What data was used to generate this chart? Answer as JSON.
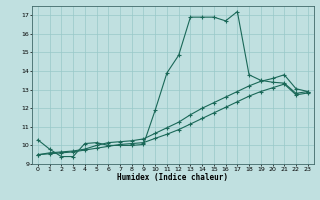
{
  "title": "",
  "xlabel": "Humidex (Indice chaleur)",
  "ylabel": "",
  "bg_color": "#c0e0e0",
  "line_color": "#1a6858",
  "grid_color": "#98c8c8",
  "xlim": [
    -0.5,
    23.5
  ],
  "ylim": [
    9.0,
    17.5
  ],
  "xticks": [
    0,
    1,
    2,
    3,
    4,
    5,
    6,
    7,
    8,
    9,
    10,
    11,
    12,
    13,
    14,
    15,
    16,
    17,
    18,
    19,
    20,
    21,
    22,
    23
  ],
  "yticks": [
    9,
    10,
    11,
    12,
    13,
    14,
    15,
    16,
    17
  ],
  "line1_x": [
    0,
    1,
    2,
    3,
    4,
    5,
    6,
    7,
    8,
    9,
    10,
    11,
    12,
    13,
    14,
    15,
    16,
    17,
    18,
    19,
    20,
    21,
    22,
    23
  ],
  "line1_y": [
    10.3,
    9.8,
    9.4,
    9.4,
    10.1,
    10.15,
    10.0,
    10.0,
    10.0,
    10.05,
    11.9,
    13.9,
    14.85,
    16.9,
    16.9,
    16.9,
    16.7,
    17.2,
    13.8,
    13.5,
    13.4,
    13.35,
    12.8,
    12.9
  ],
  "line2_x": [
    0,
    1,
    2,
    3,
    4,
    5,
    6,
    7,
    8,
    9,
    10,
    11,
    12,
    13,
    14,
    15,
    16,
    17,
    18,
    19,
    20,
    21,
    22,
    23
  ],
  "line2_y": [
    9.5,
    9.6,
    9.65,
    9.7,
    9.8,
    10.0,
    10.15,
    10.2,
    10.25,
    10.35,
    10.65,
    10.95,
    11.25,
    11.65,
    12.0,
    12.3,
    12.6,
    12.9,
    13.2,
    13.45,
    13.6,
    13.8,
    13.05,
    12.9
  ],
  "line3_x": [
    0,
    1,
    2,
    3,
    4,
    5,
    6,
    7,
    8,
    9,
    10,
    11,
    12,
    13,
    14,
    15,
    16,
    17,
    18,
    19,
    20,
    21,
    22,
    23
  ],
  "line3_y": [
    9.5,
    9.55,
    9.6,
    9.65,
    9.75,
    9.85,
    9.95,
    10.05,
    10.1,
    10.15,
    10.38,
    10.6,
    10.85,
    11.15,
    11.45,
    11.75,
    12.05,
    12.35,
    12.65,
    12.9,
    13.1,
    13.3,
    12.72,
    12.82
  ]
}
